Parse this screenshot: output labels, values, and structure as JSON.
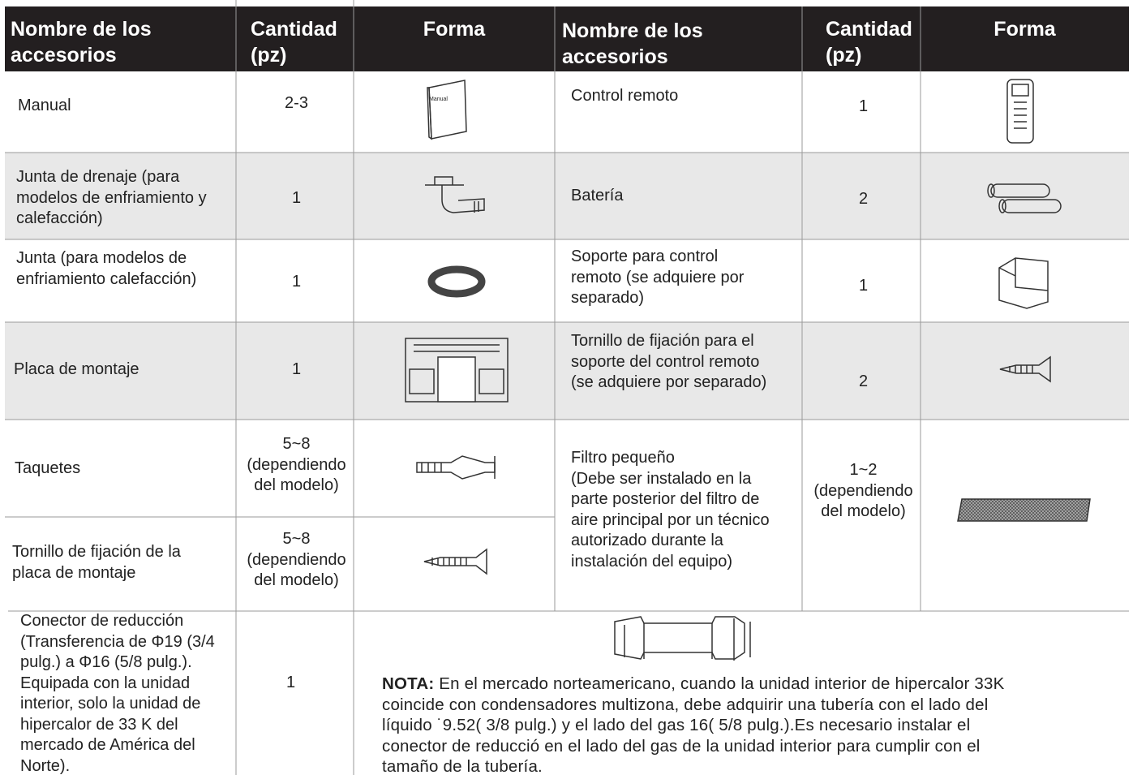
{
  "headers": [
    [
      "Nombre de los",
      "accesorios"
    ],
    [
      "Cantidad",
      "(pz)"
    ],
    [
      "Forma"
    ],
    [
      "Nombre de los",
      "accesorios"
    ],
    [
      "Cantidad",
      "(pz)"
    ],
    [
      "Forma"
    ]
  ],
  "left_column_items": [
    {
      "name": [
        "Manual"
      ],
      "quantity": [
        "2-3"
      ]
    },
    {
      "name": [
        "Junta de drenaje (para",
        "modelos de enfriamiento y",
        "calefacción)"
      ],
      "quantity": [
        "1"
      ]
    },
    {
      "name": [
        "Junta (para modelos de",
        "enfriamiento calefacción)"
      ],
      "quantity": [
        "1"
      ]
    },
    {
      "name": [
        "Placa de montaje"
      ],
      "quantity": [
        "1"
      ]
    },
    {
      "name": [
        "Taquetes"
      ],
      "quantity": [
        "5~8",
        "(dependiendo",
        "del modelo)"
      ]
    },
    {
      "name": [
        "Tornillo de fijación de la",
        "placa de montaje"
      ],
      "quantity": [
        "5~8",
        "(dependiendo",
        "del modelo)"
      ]
    }
  ],
  "right_column_items": [
    {
      "name": [
        "Control remoto"
      ],
      "quantity": [
        "1"
      ]
    },
    {
      "name": [
        "Batería"
      ],
      "quantity": [
        "2"
      ]
    },
    {
      "name": [
        "Soporte para control",
        "remoto (se adquiere por",
        "separado)"
      ],
      "quantity": [
        "1"
      ]
    },
    {
      "name": [
        "Tornillo de fijación para el",
        "soporte del control remoto",
        "(se adquiere por separado)"
      ],
      "quantity": [
        "2"
      ]
    },
    {
      "name": [
        "Filtro pequeño",
        "(Debe ser instalado en la",
        "parte posterior del filtro de",
        "aire principal por un técnico",
        "autorizado durante la",
        "instalación del equipo)"
      ],
      "quantity": [
        "1~2",
        "(dependiendo",
        "del modelo)"
      ]
    }
  ],
  "last_row": {
    "name": [
      "Conector de reducción",
      "(Transferencia de Φ19 (3/4",
      "pulg.) a Φ16 (5/8 pulg.).",
      "Equipada con la unidad",
      "interior, solo la unidad de",
      "hipercalor de 33 K del",
      "mercado de América del",
      "Norte)."
    ],
    "quantity": [
      "1"
    ],
    "note_label": "NOTA:",
    "note_lines": [
      " En el mercado norteamericano, cuando la unidad interior de hipercalor 33K",
      "coincide con condensadores multizona, debe adquirir una tubería con el lado del",
      "líquido ˙9.52( 3/8 pulg.) y el lado del gas 16( 5/8 pulg.).Es necesario instalar el",
      "conector de reducció en el lado del gas de la unidad interior para cumplir con el",
      "tamaño de la tubería."
    ]
  },
  "manual_icon_label": "Manual"
}
